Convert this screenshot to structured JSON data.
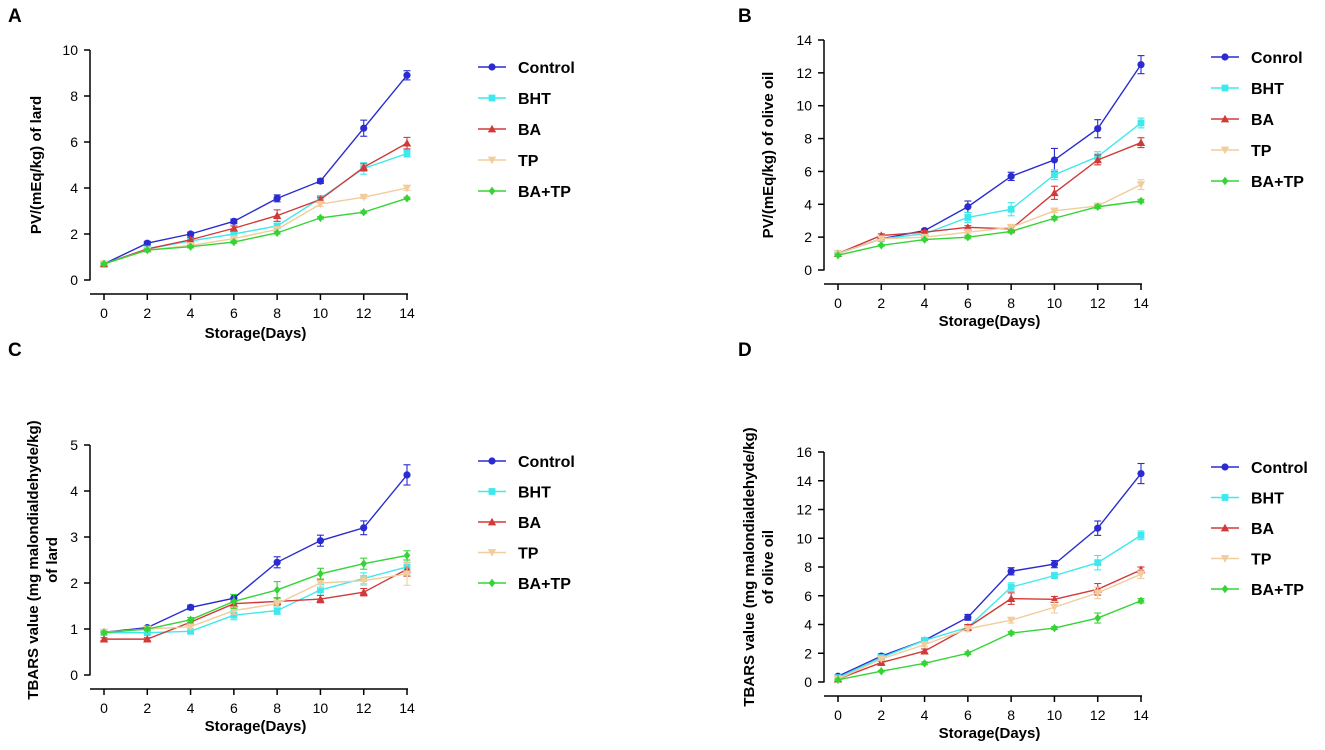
{
  "colors": {
    "Control": "#2a2bd0",
    "BHT": "#3ee9ee",
    "BA": "#d23a3a",
    "TP": "#f2cc9c",
    "BA+TP": "#35d435"
  },
  "chart_data": [
    {
      "type": "line",
      "panel": "A",
      "xlabel": "Storage(Days)",
      "ylabel": "PV/(mEq/kg) of lard",
      "x": [
        0,
        2,
        4,
        6,
        8,
        10,
        12,
        14
      ],
      "xticks": [
        "0",
        "2",
        "4",
        "6",
        "8",
        "10",
        "12",
        "14"
      ],
      "ylim": [
        0,
        10
      ],
      "yticks": [
        "0",
        "2",
        "4",
        "6",
        "8",
        "10"
      ],
      "legend": "right",
      "series": [
        {
          "name": "Control",
          "marker": "circle",
          "values": [
            0.7,
            1.6,
            2.0,
            2.55,
            3.55,
            4.3,
            6.6,
            8.9
          ],
          "errors": [
            0.05,
            0.08,
            0.08,
            0.1,
            0.15,
            0.1,
            0.35,
            0.2
          ]
        },
        {
          "name": "BHT",
          "marker": "square",
          "values": [
            0.7,
            1.35,
            1.7,
            2.0,
            2.35,
            3.55,
            4.85,
            5.5
          ],
          "errors": [
            0.05,
            0.05,
            0.1,
            0.1,
            0.1,
            0.1,
            0.25,
            0.15
          ]
        },
        {
          "name": "BA",
          "marker": "triangle-up",
          "values": [
            0.7,
            1.35,
            1.75,
            2.25,
            2.8,
            3.5,
            4.9,
            5.95
          ],
          "errors": [
            0.05,
            0.05,
            0.1,
            0.1,
            0.25,
            0.1,
            0.15,
            0.25
          ]
        },
        {
          "name": "TP",
          "marker": "triangle-down",
          "values": [
            0.7,
            1.3,
            1.5,
            1.8,
            2.2,
            3.3,
            3.6,
            4.0
          ],
          "errors": [
            0.05,
            0.05,
            0.05,
            0.05,
            0.1,
            0.1,
            0.05,
            0.1
          ]
        },
        {
          "name": "BA+TP",
          "marker": "diamond",
          "values": [
            0.7,
            1.3,
            1.45,
            1.65,
            2.05,
            2.7,
            2.95,
            3.55
          ],
          "errors": [
            0.05,
            0.05,
            0.05,
            0.05,
            0.05,
            0.05,
            0.05,
            0.05
          ]
        }
      ]
    },
    {
      "type": "line",
      "panel": "B",
      "xlabel": "Storage(Days)",
      "ylabel": "PV/(mEq/kg) of olive oil",
      "x": [
        0,
        2,
        4,
        6,
        8,
        10,
        12,
        14
      ],
      "xticks": [
        "0",
        "2",
        "4",
        "6",
        "8",
        "10",
        "12",
        "14"
      ],
      "ylim": [
        0,
        14
      ],
      "yticks": [
        "0",
        "2",
        "4",
        "6",
        "8",
        "10",
        "12",
        "14"
      ],
      "legend": "right",
      "series": [
        {
          "name": "Conrol",
          "colorKey": "Control",
          "marker": "circle",
          "values": [
            1.0,
            1.9,
            2.4,
            3.85,
            5.7,
            6.7,
            8.6,
            12.5
          ],
          "errors": [
            0.1,
            0.1,
            0.1,
            0.35,
            0.25,
            0.7,
            0.55,
            0.55
          ]
        },
        {
          "name": "BHT",
          "colorKey": "BHT",
          "marker": "square",
          "values": [
            1.0,
            1.9,
            2.2,
            3.2,
            3.7,
            5.8,
            6.9,
            8.95
          ],
          "errors": [
            0.1,
            0.1,
            0.1,
            0.3,
            0.4,
            0.3,
            0.3,
            0.3
          ]
        },
        {
          "name": "BA",
          "colorKey": "BA",
          "marker": "triangle-up",
          "values": [
            1.0,
            2.1,
            2.3,
            2.6,
            2.5,
            4.7,
            6.7,
            7.75
          ],
          "errors": [
            0.1,
            0.1,
            0.1,
            0.1,
            0.2,
            0.4,
            0.3,
            0.3
          ]
        },
        {
          "name": "TP",
          "colorKey": "TP",
          "marker": "triangle-down",
          "values": [
            1.0,
            1.9,
            2.0,
            2.3,
            2.6,
            3.6,
            3.9,
            5.2
          ],
          "errors": [
            0.1,
            0.1,
            0.1,
            0.1,
            0.1,
            0.1,
            0.1,
            0.3
          ]
        },
        {
          "name": "BA+TP",
          "colorKey": "BA+TP",
          "marker": "diamond",
          "values": [
            0.9,
            1.5,
            1.85,
            2.0,
            2.35,
            3.15,
            3.85,
            4.2
          ],
          "errors": [
            0.05,
            0.05,
            0.05,
            0.1,
            0.1,
            0.1,
            0.1,
            0.1
          ]
        }
      ]
    },
    {
      "type": "line",
      "panel": "C",
      "xlabel": "Storage(Days)",
      "ylabel": "TBARS value (mg malondialdehyde/kg) of lard",
      "x": [
        0,
        2,
        4,
        6,
        8,
        10,
        12,
        14
      ],
      "xticks": [
        "0",
        "2",
        "4",
        "6",
        "8",
        "10",
        "12",
        "14"
      ],
      "ylim": [
        0,
        5
      ],
      "yticks": [
        "0",
        "1",
        "2",
        "3",
        "4",
        "5"
      ],
      "legend": "right",
      "series": [
        {
          "name": "Control",
          "marker": "circle",
          "values": [
            0.93,
            1.03,
            1.47,
            1.67,
            2.45,
            2.92,
            3.2,
            4.35
          ],
          "errors": [
            0.03,
            0.03,
            0.05,
            0.08,
            0.12,
            0.12,
            0.15,
            0.22
          ]
        },
        {
          "name": "BHT",
          "marker": "square",
          "values": [
            0.92,
            0.92,
            0.95,
            1.3,
            1.4,
            1.85,
            2.1,
            2.35
          ],
          "errors": [
            0.03,
            0.03,
            0.05,
            0.1,
            0.08,
            0.12,
            0.12,
            0.15
          ]
        },
        {
          "name": "BA",
          "marker": "triangle-up",
          "values": [
            0.78,
            0.78,
            1.15,
            1.55,
            1.6,
            1.65,
            1.8,
            2.3
          ],
          "errors": [
            0.03,
            0.03,
            0.05,
            0.08,
            0.08,
            0.08,
            0.08,
            0.15
          ]
        },
        {
          "name": "TP",
          "marker": "triangle-down",
          "values": [
            0.93,
            1.0,
            1.05,
            1.4,
            1.55,
            2.0,
            2.05,
            2.2
          ],
          "errors": [
            0.03,
            0.03,
            0.05,
            0.08,
            0.08,
            0.1,
            0.1,
            0.25
          ]
        },
        {
          "name": "BA+TP",
          "marker": "diamond",
          "values": [
            0.92,
            1.0,
            1.2,
            1.6,
            1.85,
            2.2,
            2.42,
            2.6
          ],
          "errors": [
            0.03,
            0.03,
            0.05,
            0.15,
            0.18,
            0.12,
            0.12,
            0.1
          ]
        }
      ]
    },
    {
      "type": "line",
      "panel": "D",
      "xlabel": "Storage(Days)",
      "ylabel": "TBARS value (mg malondialdehyde/kg) of olive oil",
      "x": [
        0,
        2,
        4,
        6,
        8,
        10,
        12,
        14
      ],
      "xticks": [
        "0",
        "2",
        "4",
        "6",
        "8",
        "10",
        "12",
        "14"
      ],
      "ylim": [
        0,
        16
      ],
      "yticks": [
        "0",
        "2",
        "4",
        "6",
        "8",
        "10",
        "12",
        "14",
        "16"
      ],
      "legend": "right",
      "series": [
        {
          "name": "Control",
          "marker": "circle",
          "values": [
            0.4,
            1.8,
            2.9,
            4.5,
            7.7,
            8.2,
            10.7,
            14.5
          ],
          "errors": [
            0.1,
            0.15,
            0.15,
            0.2,
            0.25,
            0.25,
            0.5,
            0.7
          ]
        },
        {
          "name": "BHT",
          "marker": "square",
          "values": [
            0.3,
            1.7,
            2.9,
            3.8,
            6.6,
            7.4,
            8.3,
            10.2
          ],
          "errors": [
            0.1,
            0.15,
            0.15,
            0.2,
            0.3,
            0.2,
            0.5,
            0.3
          ]
        },
        {
          "name": "BA",
          "marker": "triangle-up",
          "values": [
            0.2,
            1.35,
            2.15,
            3.8,
            5.8,
            5.75,
            6.45,
            7.8
          ],
          "errors": [
            0.1,
            0.1,
            0.15,
            0.2,
            0.4,
            0.2,
            0.4,
            0.2
          ]
        },
        {
          "name": "TP",
          "marker": "triangle-down",
          "values": [
            0.2,
            1.6,
            2.6,
            3.7,
            4.3,
            5.2,
            6.2,
            7.5
          ],
          "errors": [
            0.1,
            0.1,
            0.15,
            0.2,
            0.2,
            0.4,
            0.4,
            0.3
          ]
        },
        {
          "name": "BA+TP",
          "marker": "diamond",
          "values": [
            0.15,
            0.75,
            1.3,
            2.0,
            3.4,
            3.75,
            4.45,
            5.65
          ],
          "errors": [
            0.05,
            0.05,
            0.1,
            0.1,
            0.1,
            0.1,
            0.35,
            0.15
          ]
        }
      ]
    }
  ]
}
